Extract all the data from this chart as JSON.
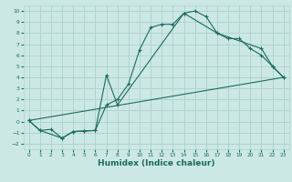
{
  "title": "",
  "xlabel": "Humidex (Indice chaleur)",
  "background_color": "#cce8e5",
  "grid_color": "#b0d4d0",
  "line_color": "#1a6b60",
  "xlim": [
    -0.5,
    23.5
  ],
  "ylim": [
    -2.5,
    10.5
  ],
  "xticks": [
    0,
    1,
    2,
    3,
    4,
    5,
    6,
    7,
    8,
    9,
    10,
    11,
    12,
    13,
    14,
    15,
    16,
    17,
    18,
    19,
    20,
    21,
    22,
    23
  ],
  "yticks": [
    -2,
    -1,
    0,
    1,
    2,
    3,
    4,
    5,
    6,
    7,
    8,
    9,
    10
  ],
  "line1_x": [
    0,
    1,
    2,
    3,
    4,
    5,
    6,
    7,
    8,
    9,
    10,
    11,
    12,
    13,
    14,
    15,
    16,
    17,
    18,
    19,
    20,
    21,
    22,
    23
  ],
  "line1_y": [
    0.1,
    -0.8,
    -0.7,
    -1.5,
    -0.9,
    -0.85,
    -0.8,
    1.5,
    2.0,
    3.4,
    6.5,
    8.5,
    8.8,
    8.8,
    9.8,
    10.0,
    9.5,
    8.0,
    7.5,
    7.5,
    6.6,
    6.0,
    5.0,
    4.0
  ],
  "line2_x": [
    0,
    1,
    3,
    4,
    5,
    6,
    7,
    8,
    14,
    17,
    21,
    22,
    23
  ],
  "line2_y": [
    0.1,
    -0.8,
    -1.5,
    -0.9,
    -0.85,
    -0.8,
    4.2,
    1.5,
    9.8,
    8.0,
    6.6,
    5.0,
    4.0
  ],
  "line3_x": [
    0,
    23
  ],
  "line3_y": [
    0.1,
    4.0
  ],
  "xlabel_fontsize": 6.5,
  "xlabel_fontweight": "bold"
}
